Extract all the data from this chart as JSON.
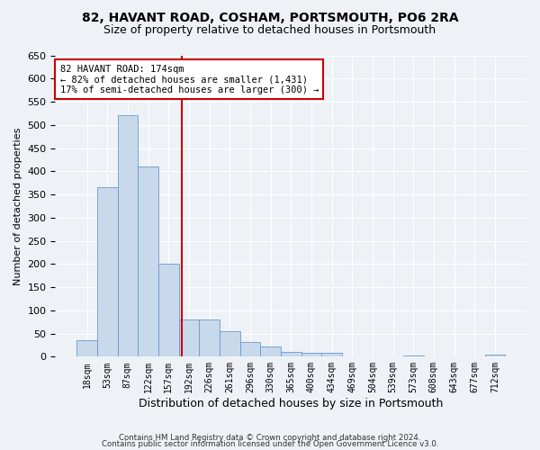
{
  "title1": "82, HAVANT ROAD, COSHAM, PORTSMOUTH, PO6 2RA",
  "title2": "Size of property relative to detached houses in Portsmouth",
  "xlabel": "Distribution of detached houses by size in Portsmouth",
  "ylabel": "Number of detached properties",
  "bar_labels": [
    "18sqm",
    "53sqm",
    "87sqm",
    "122sqm",
    "157sqm",
    "192sqm",
    "226sqm",
    "261sqm",
    "296sqm",
    "330sqm",
    "365sqm",
    "400sqm",
    "434sqm",
    "469sqm",
    "504sqm",
    "539sqm",
    "573sqm",
    "608sqm",
    "643sqm",
    "677sqm",
    "712sqm"
  ],
  "bar_values": [
    35,
    365,
    520,
    410,
    200,
    80,
    80,
    55,
    32,
    22,
    10,
    8,
    8,
    1,
    1,
    0,
    2,
    0,
    0,
    0,
    5
  ],
  "bar_color": "#c9d9ec",
  "bar_edge_color": "#6699cc",
  "ylim": [
    0,
    650
  ],
  "yticks": [
    0,
    50,
    100,
    150,
    200,
    250,
    300,
    350,
    400,
    450,
    500,
    550,
    600,
    650
  ],
  "vline_x": 4.65,
  "vline_color": "#cc0000",
  "ann_line1": "82 HAVANT ROAD: 174sqm",
  "ann_line2": "← 82% of detached houses are smaller (1,431)",
  "ann_line3": "17% of semi-detached houses are larger (300) →",
  "annotation_box_color": "#cc0000",
  "footer1": "Contains HM Land Registry data © Crown copyright and database right 2024.",
  "footer2": "Contains public sector information licensed under the Open Government Licence v3.0.",
  "background_color": "#eef2f7",
  "grid_color": "#ffffff"
}
